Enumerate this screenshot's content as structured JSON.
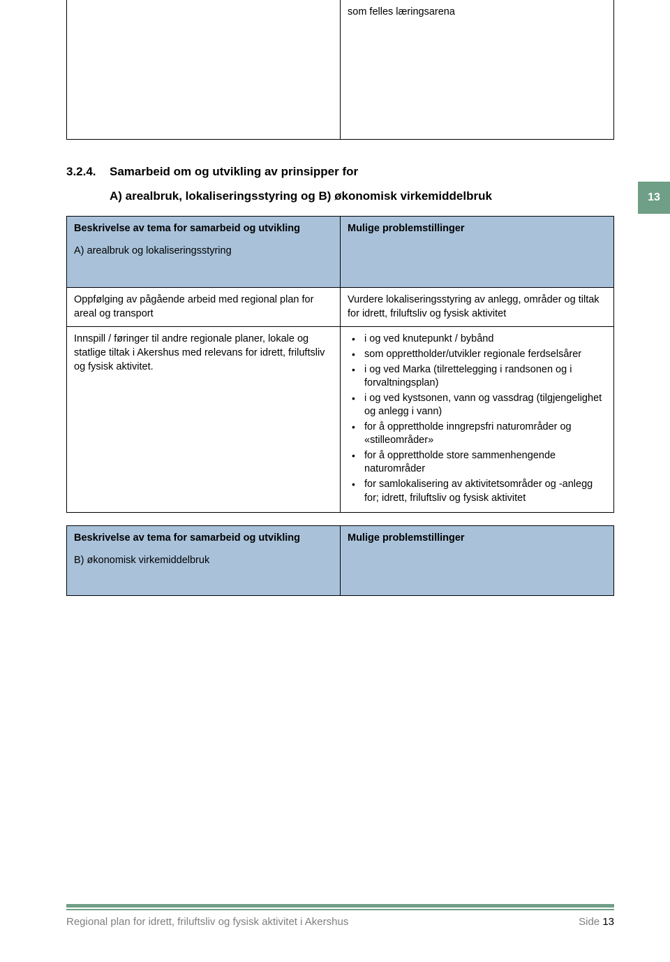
{
  "page_badge": "13",
  "top_box_text": "som felles læringsarena",
  "section": {
    "number": "3.2.4.",
    "title": "Samarbeid om og utvikling av prinsipper for",
    "rest": "A) arealbruk, lokaliseringsstyring og B) økonomisk virkemiddelbruk"
  },
  "table1": {
    "header": {
      "left_main": "Beskrivelse av tema for samarbeid og utvikling",
      "left_sub": "A)  arealbruk og lokaliseringsstyring",
      "right_main": "Mulige problemstillinger"
    },
    "row1": {
      "left": "Oppfølging av pågående arbeid med regional plan for areal og transport",
      "right": "Vurdere lokaliseringsstyring av anlegg, områder og tiltak for idrett, friluftsliv og fysisk aktivitet"
    },
    "row2": {
      "left": "Innspill / føringer til andre regionale planer, lokale og statlige tiltak i Akershus med relevans for idrett, friluftsliv og fysisk aktivitet.",
      "bullets": [
        "i og ved knutepunkt / bybånd",
        "som opprettholder/utvikler regionale ferdselsårer",
        "i og ved Marka (tilrettelegging i randsonen og i forvaltningsplan)",
        "i og ved kystsonen, vann og vassdrag (tilgjengelighet og anlegg i vann)",
        "for å opprettholde inngrepsfri naturområder og «stilleområder»",
        "for å opprettholde store sammenhengende naturområder",
        "for samlokalisering av aktivitetsområder og -anlegg for; idrett, friluftsliv og fysisk aktivitet"
      ]
    }
  },
  "table2": {
    "header": {
      "left_main": "Beskrivelse av tema for samarbeid og utvikling",
      "left_sub": "B)  økonomisk virkemiddelbruk",
      "right_main": "Mulige problemstillinger"
    }
  },
  "footer": {
    "title": "Regional plan for idrett, friluftsliv og fysisk aktivitet i Akershus",
    "side": "Side",
    "page": "13"
  },
  "colors": {
    "accent_green": "#6f9f86",
    "header_blue": "#a9c2da",
    "footer_gray": "#7f7f7f",
    "text": "#000000",
    "background": "#ffffff"
  },
  "typography": {
    "body_fontsize_pt": 11,
    "heading_fontsize_pt": 13,
    "font_family": "Arial"
  }
}
